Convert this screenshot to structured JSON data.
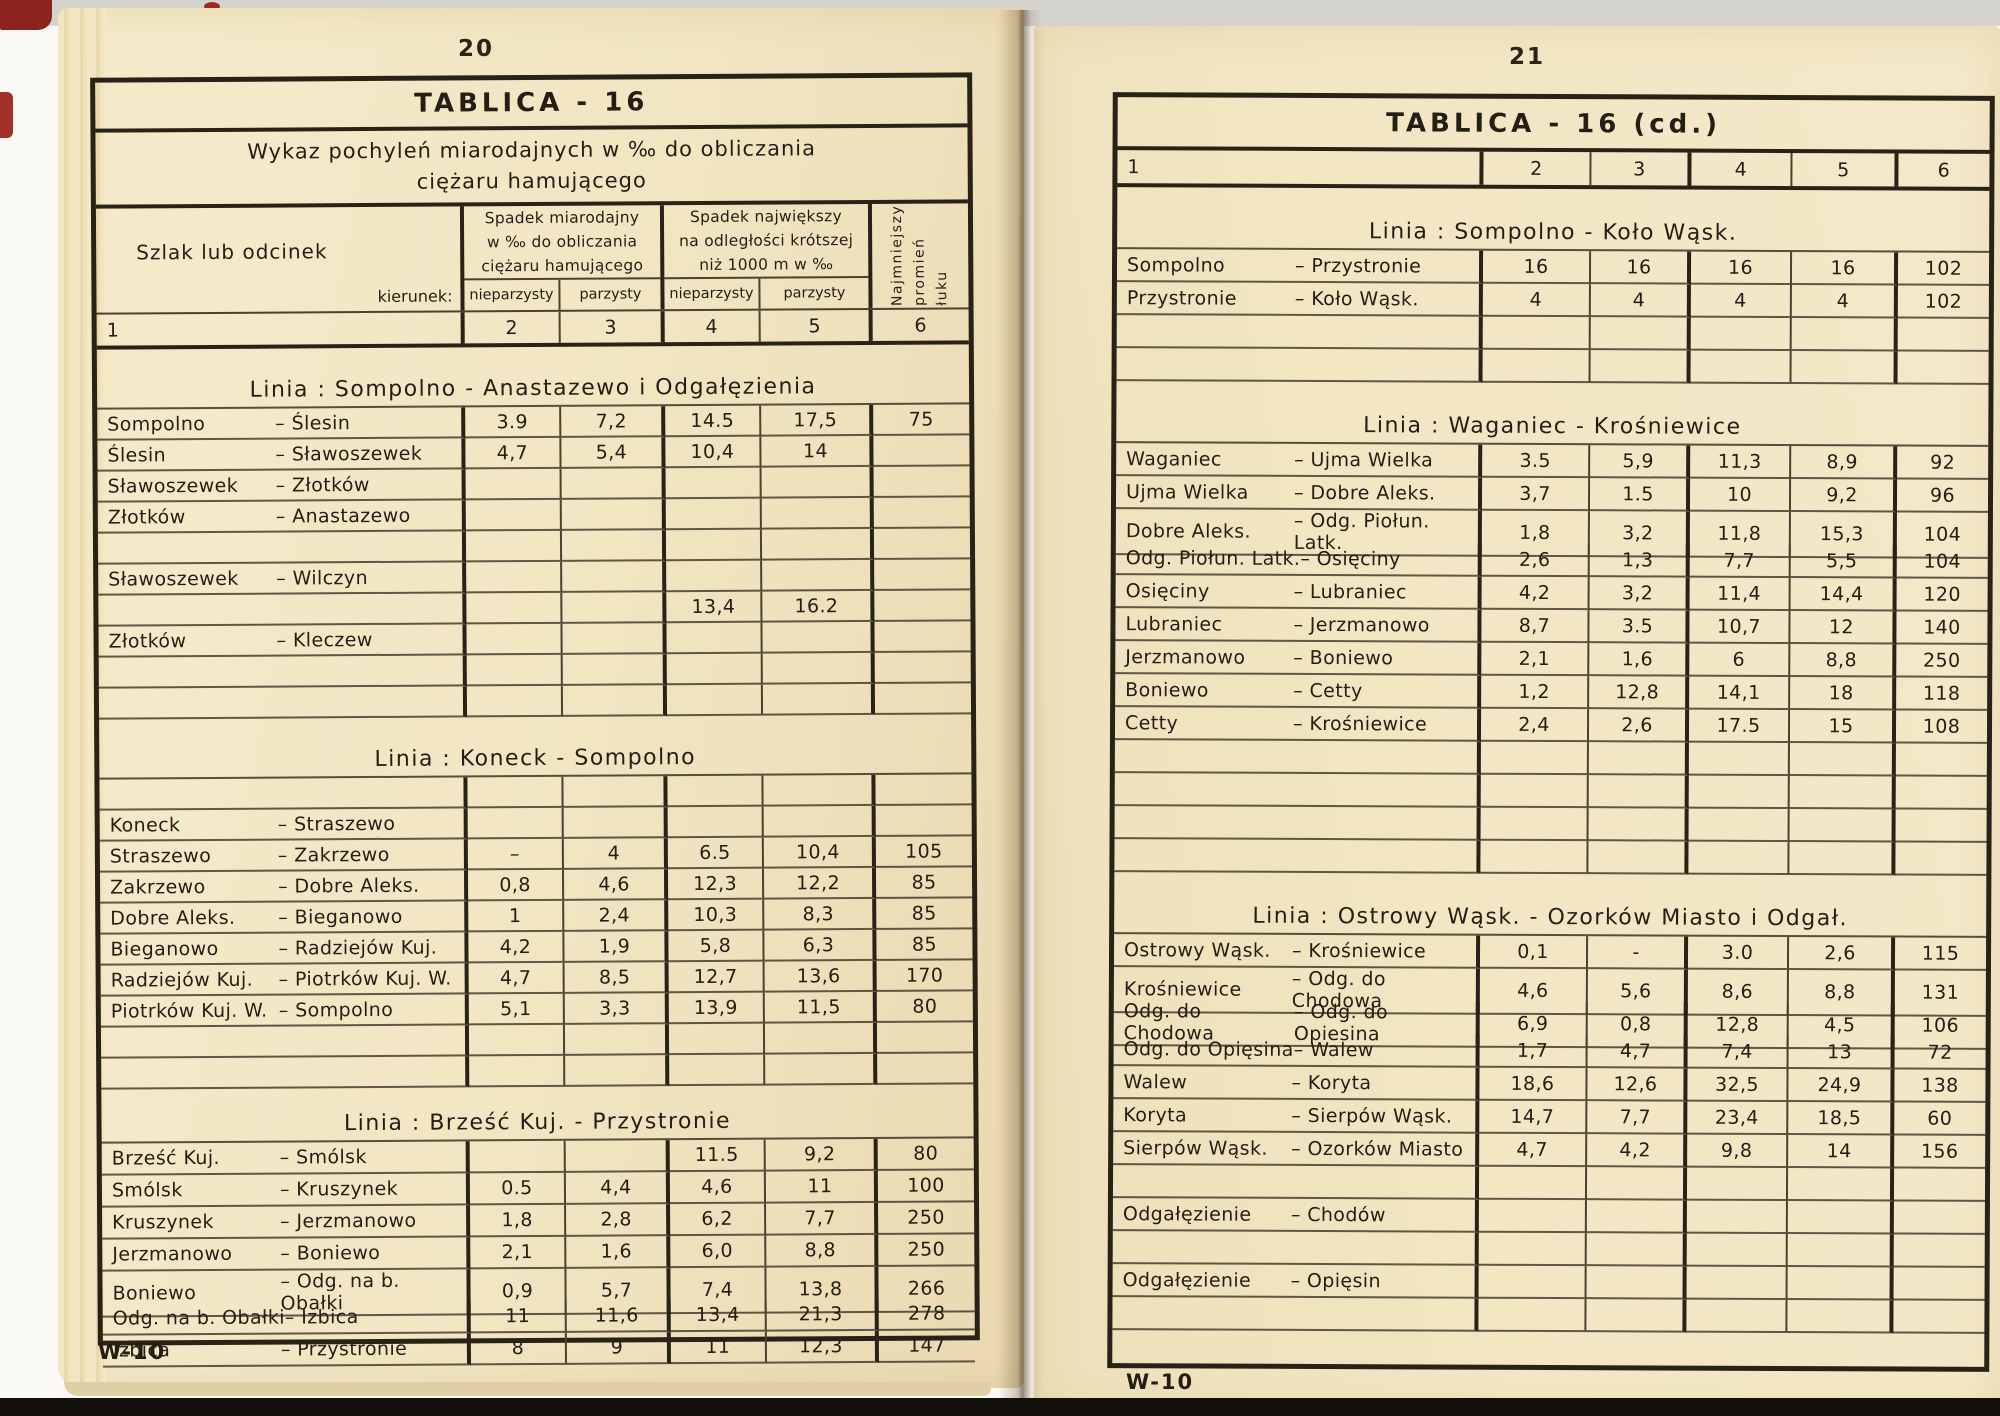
{
  "left_page": {
    "page_number": "20",
    "table_title": "TABLICA - 16",
    "subtitle": "Wykaz pochyleń miarodajnych w ‰ do obliczania\nciężaru hamującego",
    "header": {
      "col1": "Szlak lub odcinek",
      "kierunek": "kierunek:",
      "group_a": "Spadek miarodajny\nw ‰ do obliczania\nciężaru hamującego",
      "group_b": "Spadek największy\nna odległości krótszej\nniż 1000 m w ‰",
      "sub_a1": "nieparzysty",
      "sub_a2": "parzysty",
      "sub_b1": "nieparzysty",
      "sub_b2": "parzysty",
      "col6": "Najmniejszy\npromień\nłuku",
      "numbers": [
        "1",
        "2",
        "3",
        "4",
        "5",
        "6"
      ]
    },
    "sections": [
      {
        "title": "Linia :  Sompolno - Anastazewo i Odgałęzienia",
        "rows": [
          [
            "Sompolno",
            "– Ślesin",
            "3.9",
            "7,2",
            "14.5",
            "17,5",
            "75"
          ],
          [
            "Ślesin",
            "– Sławoszewek",
            "4,7",
            "5,4",
            "10,4",
            "14",
            ""
          ],
          [
            "Sławoszewek",
            "– Złotków",
            "",
            "",
            "",
            "",
            ""
          ],
          [
            "Złotków",
            "– Anastazewo",
            "",
            "",
            "",
            "",
            ""
          ],
          [
            "",
            "",
            "",
            "",
            "",
            "",
            ""
          ],
          [
            "Sławoszewek",
            "– Wilczyn",
            "",
            "",
            "",
            "",
            ""
          ],
          [
            "",
            "",
            "",
            "",
            "13,4",
            "16.2",
            ""
          ],
          [
            "Złotków",
            "– Kleczew",
            "",
            "",
            "",
            "",
            ""
          ],
          [
            "",
            "",
            "",
            "",
            "",
            "",
            ""
          ],
          [
            "",
            "",
            "",
            "",
            "",
            "",
            ""
          ]
        ]
      },
      {
        "title": "Linia :  Koneck - Sompolno",
        "rows": [
          [
            "",
            "",
            "",
            "",
            "",
            "",
            ""
          ],
          [
            "Koneck",
            "– Straszewo",
            "",
            "",
            "",
            "",
            ""
          ],
          [
            "Straszewo",
            "– Zakrzewo",
            "–",
            "4",
            "6.5",
            "10,4",
            "105"
          ],
          [
            "Zakrzewo",
            "– Dobre Aleks.",
            "0,8",
            "4,6",
            "12,3",
            "12,2",
            "85"
          ],
          [
            "Dobre Aleks.",
            "– Bieganowo",
            "1",
            "2,4",
            "10,3",
            "8,3",
            "85"
          ],
          [
            "Bieganowo",
            "– Radziejów Kuj.",
            "4,2",
            "1,9",
            "5,8",
            "6,3",
            "85"
          ],
          [
            "Radziejów Kuj.",
            "– Piotrków Kuj. W.",
            "4,7",
            "8,5",
            "12,7",
            "13,6",
            "170"
          ],
          [
            "Piotrków Kuj. W.",
            "– Sompolno",
            "5,1",
            "3,3",
            "13,9",
            "11,5",
            "80"
          ],
          [
            "",
            "",
            "",
            "",
            "",
            "",
            ""
          ],
          [
            "",
            "",
            "",
            "",
            "",
            "",
            ""
          ]
        ]
      },
      {
        "title": "Linia :  Brześć Kuj. - Przystronie",
        "rows": [
          [
            "Brześć Kuj.",
            "– Smólsk",
            "",
            "",
            "11.5",
            "9,2",
            "80"
          ],
          [
            "Smólsk",
            "– Kruszynek",
            "0.5",
            "4,4",
            "4,6",
            "11",
            "100"
          ],
          [
            "Kruszynek",
            "– Jerzmanowo",
            "1,8",
            "2,8",
            "6,2",
            "7,7",
            "250"
          ],
          [
            "Jerzmanowo",
            "– Boniewo",
            "2,1",
            "1,6",
            "6,0",
            "8,8",
            "250"
          ],
          [
            "Boniewo",
            "– Odg. na b. Obałki",
            "0,9",
            "5,7",
            "7,4",
            "13,8",
            "266"
          ],
          [
            "Odg. na b. Obałki",
            "– Izbica",
            "11",
            "11,6",
            "13,4",
            "21,3",
            "278"
          ],
          [
            "Izbica",
            "– Przystronie",
            "8",
            "9",
            "11",
            "12,3",
            "147"
          ]
        ]
      }
    ],
    "footer": "W-10"
  },
  "right_page": {
    "page_number": "21",
    "table_title": "TABLICA - 16  (cd.)",
    "numbers": [
      "1",
      "2",
      "3",
      "4",
      "5",
      "6"
    ],
    "sections": [
      {
        "title": "Linia :  Sompolno - Koło Wąsk.",
        "rows": [
          [
            "Sompolno",
            "– Przystronie",
            "16",
            "16",
            "16",
            "16",
            "102"
          ],
          [
            "Przystronie",
            "– Koło Wąsk.",
            "4",
            "4",
            "4",
            "4",
            "102"
          ],
          [
            "",
            "",
            "",
            "",
            "",
            "",
            ""
          ],
          [
            "",
            "",
            "",
            "",
            "",
            "",
            ""
          ]
        ]
      },
      {
        "title": "Linia :  Waganiec - Krośniewice",
        "rows": [
          [
            "Waganiec",
            "– Ujma Wielka",
            "3.5",
            "5,9",
            "11,3",
            "8,9",
            "92"
          ],
          [
            "Ujma Wielka",
            "– Dobre Aleks.",
            "3,7",
            "1.5",
            "10",
            "9,2",
            "96"
          ],
          [
            "Dobre Aleks.",
            "– Odg. Piołun. Latk.",
            "1,8",
            "3,2",
            "11,8",
            "15,3",
            "104"
          ],
          [
            "Odg. Piołun. Latk.",
            "– Osięciny",
            "2,6",
            "1,3",
            "7,7",
            "5,5",
            "104"
          ],
          [
            "Osięciny",
            "– Lubraniec",
            "4,2",
            "3,2",
            "11,4",
            "14,4",
            "120"
          ],
          [
            "Lubraniec",
            "– Jerzmanowo",
            "8,7",
            "3.5",
            "10,7",
            "12",
            "140"
          ],
          [
            "Jerzmanowo",
            "– Boniewo",
            "2,1",
            "1,6",
            "6",
            "8,8",
            "250"
          ],
          [
            "Boniewo",
            "– Cetty",
            "1,2",
            "12,8",
            "14,1",
            "18",
            "118"
          ],
          [
            "Cetty",
            "– Krośniewice",
            "2,4",
            "2,6",
            "17.5",
            "15",
            "108"
          ],
          [
            "",
            "",
            "",
            "",
            "",
            "",
            ""
          ],
          [
            "",
            "",
            "",
            "",
            "",
            "",
            ""
          ],
          [
            "",
            "",
            "",
            "",
            "",
            "",
            ""
          ],
          [
            "",
            "",
            "",
            "",
            "",
            "",
            ""
          ]
        ]
      },
      {
        "title": "Linia :  Ostrowy Wąsk. - Ozorków Miasto i Odgał.",
        "rows": [
          [
            "Ostrowy Wąsk.",
            "– Krośniewice",
            "0,1",
            "-",
            "3.0",
            "2,6",
            "115"
          ],
          [
            "Krośniewice",
            "– Odg. do Chodowa",
            "4,6",
            "5,6",
            "8,6",
            "8,8",
            "131"
          ],
          [
            "Odg. do Chodowa",
            "– Odg. do Opiesina",
            "6,9",
            "0,8",
            "12,8",
            "4,5",
            "106"
          ],
          [
            "Odg. do Opięsina",
            "– Walew",
            "1,7",
            "4,7",
            "7,4",
            "13",
            "72"
          ],
          [
            "Walew",
            "– Koryta",
            "18,6",
            "12,6",
            "32,5",
            "24,9",
            "138"
          ],
          [
            "Koryta",
            "– Sierpów Wąsk.",
            "14,7",
            "7,7",
            "23,4",
            "18,5",
            "60"
          ],
          [
            "Sierpów Wąsk.",
            "– Ozorków Miasto",
            "4,7",
            "4,2",
            "9,8",
            "14",
            "156"
          ],
          [
            "",
            "",
            "",
            "",
            "",
            "",
            ""
          ],
          [
            "Odgałęzienie",
            "– Chodów",
            "",
            "",
            "",
            "",
            ""
          ],
          [
            "",
            "",
            "",
            "",
            "",
            "",
            ""
          ],
          [
            "Odgałęzienie",
            "– Opięsin",
            "",
            "",
            "",
            "",
            ""
          ],
          [
            "",
            "",
            "",
            "",
            "",
            "",
            ""
          ]
        ]
      }
    ],
    "footer": "W-10"
  }
}
